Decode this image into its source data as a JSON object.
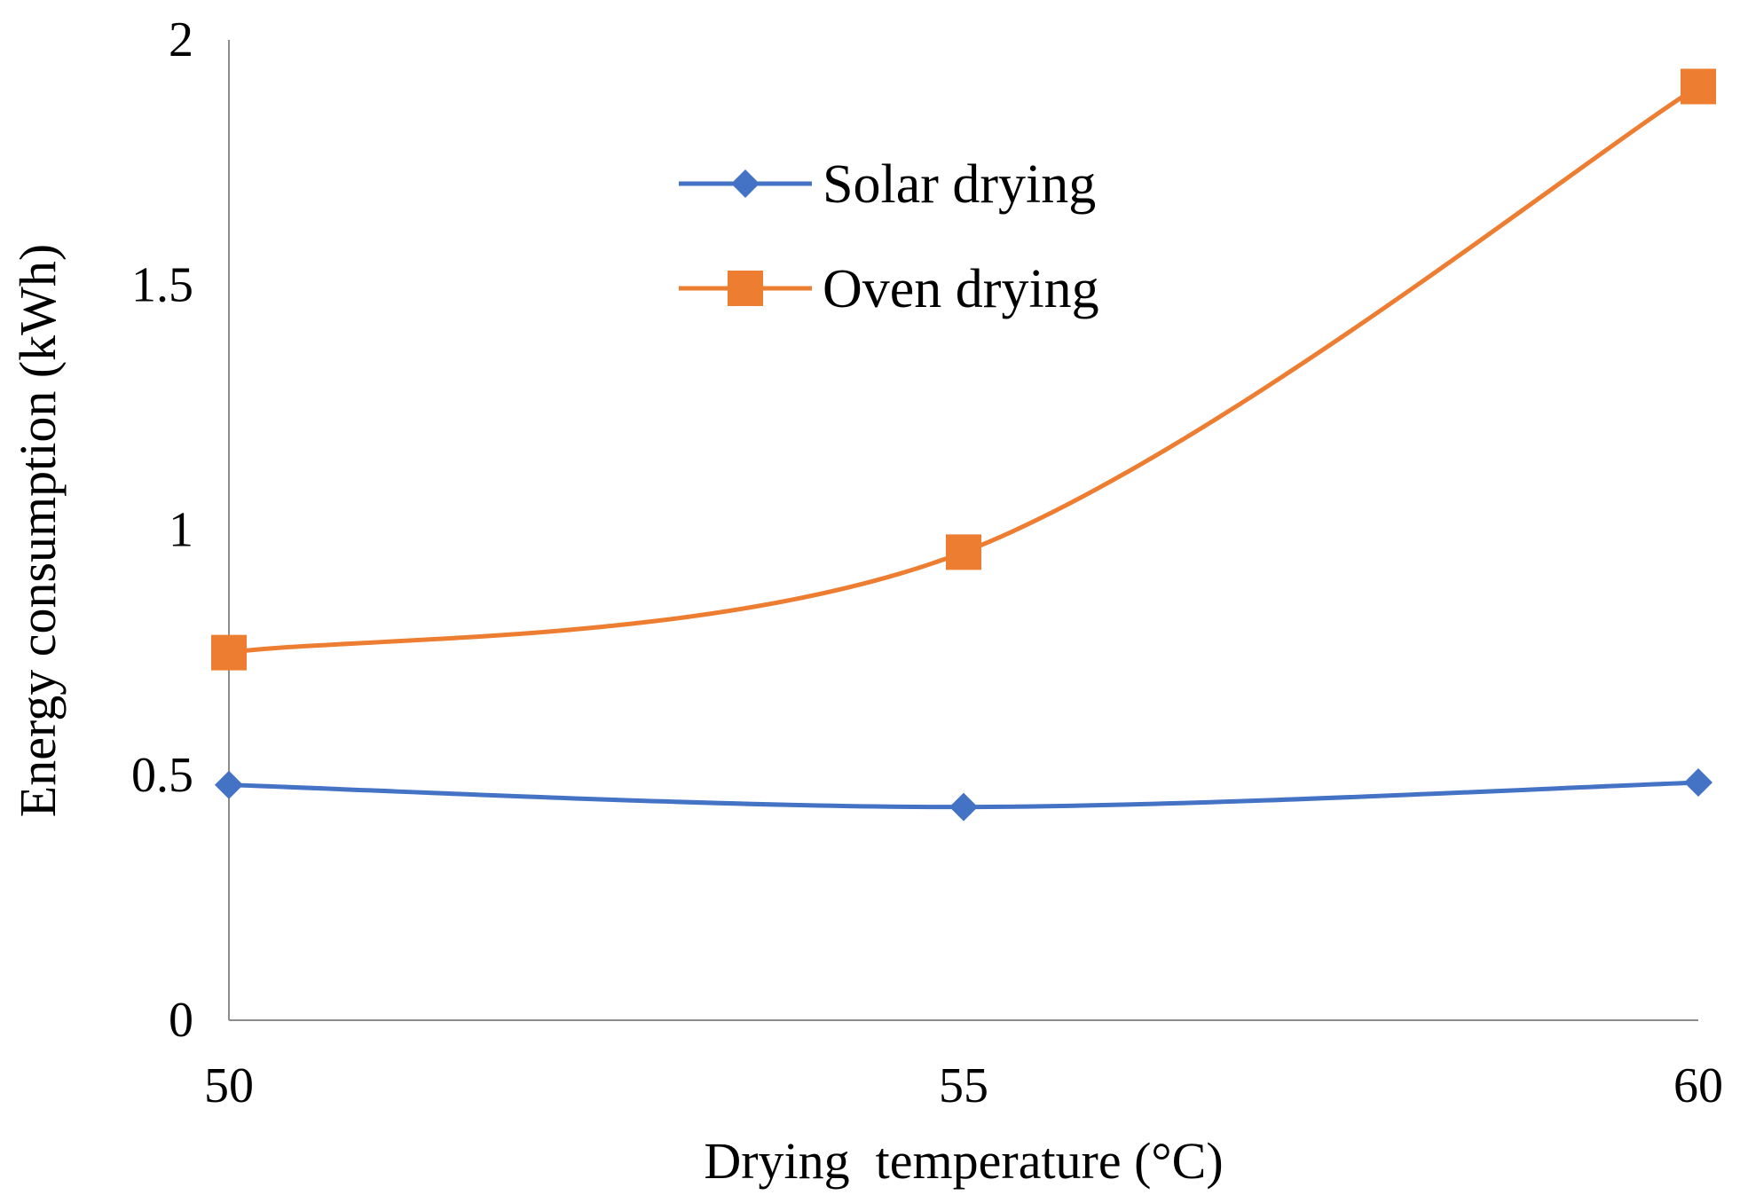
{
  "chart_data": {
    "type": "line",
    "title": "",
    "xlabel": "Drying  temperature (°C)",
    "ylabel": "Energy consumption (kWh)",
    "x": [
      50,
      55,
      60
    ],
    "xticks": [
      "50",
      "55",
      "60"
    ],
    "xlim": [
      50,
      60
    ],
    "yticks": [
      "0",
      "0.5",
      "1",
      "1.5",
      "2"
    ],
    "ylim": [
      0,
      2
    ],
    "grid": false,
    "legend_position": "top-center",
    "smooth": true,
    "series": [
      {
        "name": "Solar drying",
        "values": [
          0.48,
          0.435,
          0.485
        ],
        "color": "#4472c4",
        "marker": "diamond"
      },
      {
        "name": "Oven drying",
        "values": [
          0.75,
          0.955,
          1.905
        ],
        "color": "#ed7d31",
        "marker": "square"
      }
    ]
  }
}
